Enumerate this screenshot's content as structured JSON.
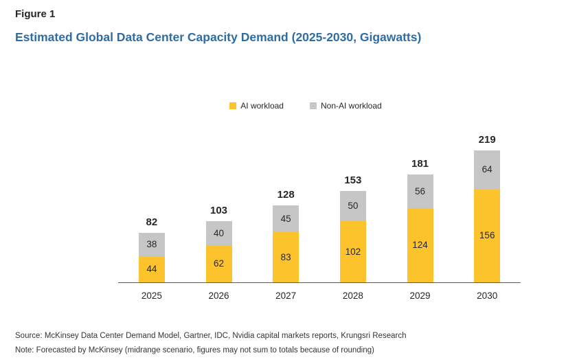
{
  "figure_label": "Figure 1",
  "title": "Estimated Global Data Center Capacity Demand (2025-2030, Gigawatts)",
  "legend": [
    {
      "label": "AI workload",
      "color": "#FDC32D"
    },
    {
      "label": "Non-AI workload",
      "color": "#C6C6C6"
    }
  ],
  "chart_data": {
    "type": "bar",
    "stacked": true,
    "title": "Estimated Global Data Center Capacity Demand (2025-2030, Gigawatts)",
    "unit": "Gigawatts",
    "categories": [
      "2025",
      "2026",
      "2027",
      "2028",
      "2029",
      "2030"
    ],
    "series": [
      {
        "name": "AI workload",
        "color": "#FDC32D",
        "values": [
          44,
          62,
          83,
          102,
          124,
          156
        ]
      },
      {
        "name": "Non-AI workload",
        "color": "#C6C6C6",
        "values": [
          38,
          40,
          45,
          50,
          56,
          64
        ]
      }
    ],
    "totals": [
      82,
      103,
      128,
      153,
      181,
      219
    ],
    "xlabel": "",
    "ylabel": "",
    "ylim": [
      0,
      230
    ],
    "grid": false,
    "legend_position": "top-center"
  },
  "footer": {
    "source": "Source: McKinsey Data Center Demand Model, Gartner, IDC, Nvidia capital markets reports, Krungsri Research",
    "note": "Note: Forecasted by McKinsey (midrange scenario, figures may not sum to totals because of rounding)"
  },
  "colors": {
    "title": "#2E6DA4",
    "ai": "#FDC32D",
    "non_ai": "#C6C6C6",
    "axis": "#595959",
    "text": "#262626"
  }
}
